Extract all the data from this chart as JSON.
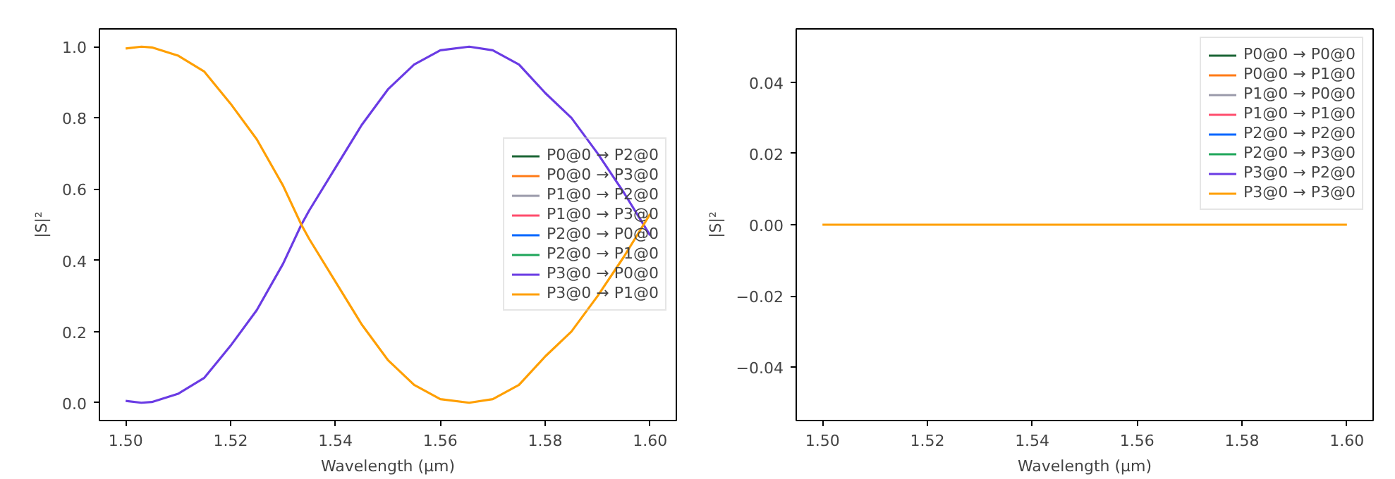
{
  "chart_data": [
    {
      "type": "line",
      "xlabel": "Wavelength (µm)",
      "ylabel": "|S|²",
      "xlim": [
        1.495,
        1.605
      ],
      "ylim": [
        -0.05,
        1.05
      ],
      "xticks": [
        {
          "value": 1.5,
          "label": "1.50"
        },
        {
          "value": 1.52,
          "label": "1.52"
        },
        {
          "value": 1.54,
          "label": "1.54"
        },
        {
          "value": 1.56,
          "label": "1.56"
        },
        {
          "value": 1.58,
          "label": "1.58"
        },
        {
          "value": 1.6,
          "label": "1.60"
        }
      ],
      "yticks": [
        {
          "value": 0,
          "label": "0.0"
        },
        {
          "value": 0.2,
          "label": "0.2"
        },
        {
          "value": 0.4,
          "label": "0.4"
        },
        {
          "value": 0.6,
          "label": "0.6"
        },
        {
          "value": 0.8,
          "label": "0.8"
        },
        {
          "value": 1,
          "label": "1.0"
        }
      ],
      "grid": false,
      "legend": "right",
      "marker": "none",
      "line_style": "solid",
      "x": [
        1.5,
        1.503,
        1.505,
        1.51,
        1.515,
        1.52,
        1.525,
        1.53,
        1.5335,
        1.535,
        1.54,
        1.545,
        1.55,
        1.555,
        1.56,
        1.5655,
        1.57,
        1.575,
        1.58,
        1.585,
        1.59,
        1.595,
        1.6
      ],
      "series": [
        {
          "name": "P0@0 → P2@0",
          "color": "#1b6535",
          "values": [
            null,
            null,
            null,
            null,
            null,
            null,
            null,
            null,
            null,
            null,
            null,
            null,
            null,
            null,
            null,
            null,
            null,
            null,
            null,
            null,
            null,
            null,
            null
          ]
        },
        {
          "name": "P0@0 → P3@0",
          "color": "#ff7b16",
          "values": [
            null,
            null,
            null,
            null,
            null,
            null,
            null,
            null,
            null,
            null,
            null,
            null,
            null,
            null,
            null,
            null,
            null,
            null,
            null,
            null,
            null,
            null,
            null
          ]
        },
        {
          "name": "P1@0 → P2@0",
          "color": "#9a9aaa",
          "values": [
            null,
            null,
            null,
            null,
            null,
            null,
            null,
            null,
            null,
            null,
            null,
            null,
            null,
            null,
            null,
            null,
            null,
            null,
            null,
            null,
            null,
            null,
            null
          ]
        },
        {
          "name": "P1@0 → P3@0",
          "color": "#ff4d6d",
          "values": [
            null,
            null,
            null,
            null,
            null,
            null,
            null,
            null,
            null,
            null,
            null,
            null,
            null,
            null,
            null,
            null,
            null,
            null,
            null,
            null,
            null,
            null,
            null
          ]
        },
        {
          "name": "P2@0 → P0@0",
          "color": "#0066ff",
          "values": [
            null,
            null,
            null,
            null,
            null,
            null,
            null,
            null,
            null,
            null,
            null,
            null,
            null,
            null,
            null,
            null,
            null,
            null,
            null,
            null,
            null,
            null,
            null
          ]
        },
        {
          "name": "P2@0 → P1@0",
          "color": "#1fa65a",
          "values": [
            null,
            null,
            null,
            null,
            null,
            null,
            null,
            null,
            null,
            null,
            null,
            null,
            null,
            null,
            null,
            null,
            null,
            null,
            null,
            null,
            null,
            null,
            null
          ]
        },
        {
          "name": "P3@0 → P0@0",
          "color": "#6a3be4",
          "values": [
            0.005,
            0.0,
            0.002,
            0.025,
            0.07,
            0.16,
            0.26,
            0.39,
            0.5,
            0.54,
            0.66,
            0.78,
            0.88,
            0.95,
            0.99,
            1.0,
            0.99,
            0.95,
            0.87,
            0.8,
            0.7,
            0.59,
            0.47
          ]
        },
        {
          "name": "P3@0 → P1@0",
          "color": "#ff9f00",
          "values": [
            0.995,
            1.0,
            0.998,
            0.975,
            0.93,
            0.84,
            0.74,
            0.61,
            0.5,
            0.46,
            0.34,
            0.22,
            0.12,
            0.05,
            0.01,
            0.0,
            0.01,
            0.05,
            0.13,
            0.2,
            0.3,
            0.41,
            0.53
          ]
        }
      ]
    },
    {
      "type": "line",
      "xlabel": "Wavelength (µm)",
      "ylabel": "|S|²",
      "xlim": [
        1.495,
        1.605
      ],
      "ylim": [
        -0.055,
        0.055
      ],
      "xticks": [
        {
          "value": 1.5,
          "label": "1.50"
        },
        {
          "value": 1.52,
          "label": "1.52"
        },
        {
          "value": 1.54,
          "label": "1.54"
        },
        {
          "value": 1.56,
          "label": "1.56"
        },
        {
          "value": 1.58,
          "label": "1.58"
        },
        {
          "value": 1.6,
          "label": "1.60"
        }
      ],
      "yticks": [
        {
          "value": -0.04,
          "label": "−0.04"
        },
        {
          "value": -0.02,
          "label": "−0.02"
        },
        {
          "value": 0,
          "label": "0.00"
        },
        {
          "value": 0.02,
          "label": "0.02"
        },
        {
          "value": 0.04,
          "label": "0.04"
        }
      ],
      "grid": false,
      "legend": "top right",
      "marker": "none",
      "line_style": "solid",
      "x": [
        1.5,
        1.6
      ],
      "series": [
        {
          "name": "P0@0 → P0@0",
          "color": "#1b6535",
          "values": [
            null,
            null
          ]
        },
        {
          "name": "P0@0 → P1@0",
          "color": "#ff7b16",
          "values": [
            null,
            null
          ]
        },
        {
          "name": "P1@0 → P0@0",
          "color": "#9a9aaa",
          "values": [
            null,
            null
          ]
        },
        {
          "name": "P1@0 → P1@0",
          "color": "#ff4d6d",
          "values": [
            null,
            null
          ]
        },
        {
          "name": "P2@0 → P2@0",
          "color": "#0066ff",
          "values": [
            null,
            null
          ]
        },
        {
          "name": "P2@0 → P3@0",
          "color": "#1fa65a",
          "values": [
            null,
            null
          ]
        },
        {
          "name": "P3@0 → P2@0",
          "color": "#6a3be4",
          "values": [
            null,
            null
          ]
        },
        {
          "name": "P3@0 → P3@0",
          "color": "#ff9f00",
          "values": [
            0,
            0
          ]
        }
      ]
    }
  ]
}
